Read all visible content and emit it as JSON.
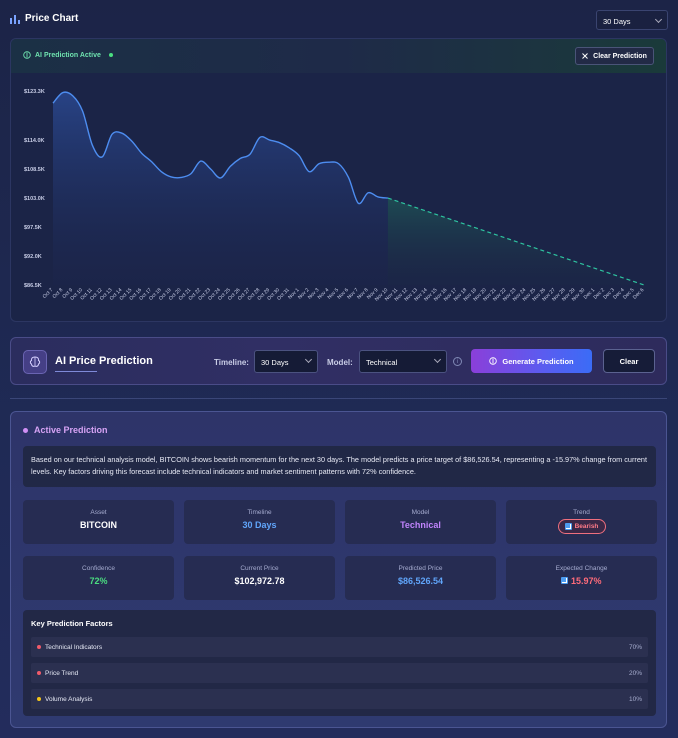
{
  "header": {
    "title": "Price Chart",
    "timeframe": "30 Days"
  },
  "chart_panel": {
    "ai_status": "AI Prediction Active",
    "clear_label": "Clear Prediction"
  },
  "chart_data": {
    "type": "line",
    "y_ticks": [
      "$123.3K",
      "$114.0K",
      "$108.5K",
      "$103.0K",
      "$97.5K",
      "$92.0K",
      "$86.5K"
    ],
    "ylim": [
      86.5,
      123.3
    ],
    "x_ticks": [
      "Oct 7",
      "Oct 8",
      "Oct 9",
      "Oct 10",
      "Oct 11",
      "Oct 12",
      "Oct 13",
      "Oct 14",
      "Oct 15",
      "Oct 16",
      "Oct 17",
      "Oct 18",
      "Oct 19",
      "Oct 20",
      "Oct 21",
      "Oct 22",
      "Oct 23",
      "Oct 24",
      "Oct 25",
      "Oct 26",
      "Oct 27",
      "Oct 28",
      "Oct 29",
      "Oct 30",
      "Oct 31",
      "Nov 1",
      "Nov 2",
      "Nov 3",
      "Nov 4",
      "Nov 5",
      "Nov 6",
      "Nov 7",
      "Nov 8",
      "Nov 9",
      "Nov 10",
      "Nov 11",
      "Nov 12",
      "Nov 13",
      "Nov 14",
      "Nov 15",
      "Nov 16",
      "Nov 17",
      "Nov 18",
      "Nov 19",
      "Nov 20",
      "Nov 21",
      "Nov 22",
      "Nov 23",
      "Nov 24",
      "Nov 25",
      "Nov 26",
      "Nov 27",
      "Nov 28",
      "Nov 29",
      "Nov 30",
      "Dec 1",
      "Dec 2",
      "Dec 3",
      "Dec 4",
      "Dec 5",
      "Dec 6"
    ],
    "series": [
      {
        "color": "#4d8df0",
        "values": [
          121.0,
          123.0,
          122.4,
          119.5,
          113.0,
          110.8,
          115.1,
          115.3,
          113.8,
          111.5,
          109.9,
          108.0,
          107.0,
          106.9,
          107.6,
          110.0,
          108.5,
          106.8,
          109.0,
          110.5,
          111.3,
          114.5,
          114.0,
          113.5,
          112.5,
          111.0,
          108.0,
          109.5,
          109.8,
          109.5,
          106.9,
          102.0,
          104.0,
          103.2,
          103.0
        ]
      },
      {
        "color": "#2ec4a0",
        "dashed": true,
        "start_index": 34,
        "values": [
          103.0,
          86.5
        ]
      }
    ]
  },
  "prediction_bar": {
    "title": "AI Price Prediction",
    "timeline_label": "Timeline:",
    "timeline_value": "30 Days",
    "model_label": "Model:",
    "model_value": "Technical",
    "info": "i",
    "generate_label": "Generate Prediction",
    "clear_label": "Clear"
  },
  "active_prediction": {
    "title": "Active Prediction",
    "description": "Based on our technical analysis model, BITCOIN shows bearish momentum for the next 30 days. The model predicts a price target of $86,526.54, representing a -15.97% change from current levels. Key factors driving this forecast include technical indicators and market sentiment patterns with 72% confidence.",
    "cards": [
      {
        "label": "Asset",
        "value": "BITCOIN",
        "color": "#ffffff"
      },
      {
        "label": "Timeline",
        "value": "30 Days",
        "color": "#60a5fa"
      },
      {
        "label": "Model",
        "value": "Technical",
        "color": "#c084fc"
      },
      {
        "label": "Trend",
        "value": "Bearish",
        "color": "#ff7a88"
      },
      {
        "label": "Confidence",
        "value": "72%",
        "color": "#4ade80"
      },
      {
        "label": "Current Price",
        "value": "$102,972.78",
        "color": "#ffffff"
      },
      {
        "label": "Predicted Price",
        "value": "$86,526.54",
        "color": "#60a5fa"
      },
      {
        "label": "Expected Change",
        "value": "15.97%",
        "color": "#ff6b7a"
      }
    ],
    "factors_title": "Key Prediction Factors",
    "factors": [
      {
        "name": "Technical Indicators",
        "percent": "70%",
        "dot": "#f05a6a"
      },
      {
        "name": "Price Trend",
        "percent": "20%",
        "dot": "#f05a6a"
      },
      {
        "name": "Volume Analysis",
        "percent": "10%",
        "dot": "#f5c518"
      }
    ]
  }
}
